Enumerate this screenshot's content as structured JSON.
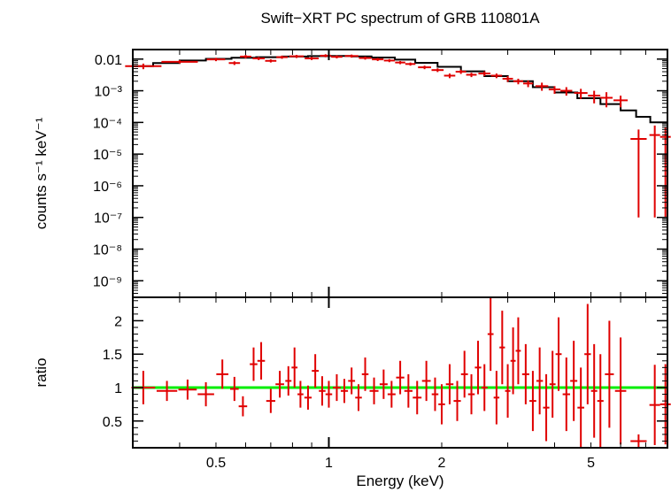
{
  "chart_data": [
    {
      "type": "scatter",
      "panel": "spectrum",
      "title": "Swift−XRT PC spectrum of GRB 110801A",
      "ylabel": "counts s⁻¹ keV⁻¹",
      "xlabel": "",
      "xscale": "log",
      "yscale": "log",
      "xlim": [
        0.3,
        8.0
      ],
      "ylim": [
        3e-10,
        0.02
      ],
      "ytick_labels": [
        {
          "value": 0.01,
          "label": "0.01"
        },
        {
          "value": 0.001,
          "label": "10⁻³"
        },
        {
          "value": 0.0001,
          "label": "10⁻⁴"
        },
        {
          "value": 1e-05,
          "label": "10⁻⁵"
        },
        {
          "value": 1e-06,
          "label": "10⁻⁶"
        },
        {
          "value": 1e-07,
          "label": "10⁻⁷"
        },
        {
          "value": 1e-08,
          "label": "10⁻⁸"
        },
        {
          "value": 1e-09,
          "label": "10⁻⁹"
        }
      ],
      "series": [
        {
          "kind": "data",
          "color": "#e00000",
          "points": [
            [
              0.32,
              0.006,
              0.0012
            ],
            [
              0.4,
              0.0082,
              0.001
            ],
            [
              0.5,
              0.0098,
              0.0012
            ],
            [
              0.56,
              0.0075,
              0.001
            ],
            [
              0.6,
              0.012,
              0.0015
            ],
            [
              0.65,
              0.0105,
              0.0012
            ],
            [
              0.7,
              0.0088,
              0.001
            ],
            [
              0.75,
              0.0115,
              0.0013
            ],
            [
              0.82,
              0.0122,
              0.0014
            ],
            [
              0.9,
              0.0105,
              0.0012
            ],
            [
              0.98,
              0.0128,
              0.0014
            ],
            [
              1.05,
              0.0118,
              0.0013
            ],
            [
              1.15,
              0.0125,
              0.0014
            ],
            [
              1.25,
              0.0108,
              0.0012
            ],
            [
              1.35,
              0.0098,
              0.0011
            ],
            [
              1.45,
              0.009,
              0.001
            ],
            [
              1.55,
              0.0078,
              0.0009
            ],
            [
              1.65,
              0.007,
              0.0008
            ],
            [
              1.8,
              0.0055,
              0.0007
            ],
            [
              1.95,
              0.0045,
              0.0006
            ],
            [
              2.1,
              0.003,
              0.0005
            ],
            [
              2.25,
              0.004,
              0.0006
            ],
            [
              2.4,
              0.0032,
              0.0005
            ],
            [
              2.6,
              0.0035,
              0.0006
            ],
            [
              2.8,
              0.003,
              0.0005
            ],
            [
              3.0,
              0.0024,
              0.0005
            ],
            [
              3.2,
              0.002,
              0.0004
            ],
            [
              3.4,
              0.0017,
              0.0004
            ],
            [
              3.7,
              0.0014,
              0.0004
            ],
            [
              4.0,
              0.0011,
              0.0003
            ],
            [
              4.3,
              0.001,
              0.0003
            ],
            [
              4.7,
              0.00085,
              0.0003
            ],
            [
              5.1,
              0.0007,
              0.0003
            ],
            [
              5.5,
              0.0006,
              0.0003
            ],
            [
              6.0,
              0.0005,
              0.0002
            ],
            [
              6.7,
              3e-05,
              2.99e-05
            ],
            [
              7.4,
              4e-05,
              3.99e-05
            ],
            [
              7.9,
              3.5e-05,
              3.49e-05
            ]
          ]
        },
        {
          "kind": "model",
          "color": "#000000",
          "step_x": [
            0.3,
            0.34,
            0.4,
            0.47,
            0.55,
            0.64,
            0.75,
            0.88,
            1.0,
            1.15,
            1.3,
            1.5,
            1.7,
            1.95,
            2.25,
            2.6,
            3.0,
            3.5,
            4.0,
            4.6,
            5.3,
            6.0,
            6.6,
            7.2,
            8.0
          ],
          "step_y": [
            0.006,
            0.0075,
            0.009,
            0.0102,
            0.011,
            0.0115,
            0.012,
            0.0124,
            0.0125,
            0.0122,
            0.0112,
            0.0096,
            0.0076,
            0.0057,
            0.0041,
            0.0029,
            0.002,
            0.0013,
            0.00088,
            0.00058,
            0.00038,
            0.00024,
            0.00015,
            0.0001
          ]
        }
      ]
    },
    {
      "type": "scatter",
      "panel": "ratio",
      "title": "",
      "xlabel": "Energy (keV)",
      "ylabel": "ratio",
      "xscale": "log",
      "yscale": "linear",
      "xlim": [
        0.3,
        8.0
      ],
      "ylim": [
        0.1,
        2.35
      ],
      "xtick_labels": [
        {
          "value": 0.5,
          "label": "0.5"
        },
        {
          "value": 1,
          "label": "1"
        },
        {
          "value": 2,
          "label": "2"
        },
        {
          "value": 5,
          "label": "5"
        }
      ],
      "ytick_labels": [
        {
          "value": 0.5,
          "label": "0.5"
        },
        {
          "value": 1,
          "label": "1"
        },
        {
          "value": 1.5,
          "label": "1.5"
        },
        {
          "value": 2,
          "label": "2"
        }
      ],
      "reference_line": {
        "y": 1.0,
        "color": "#00ee00"
      },
      "series": [
        {
          "kind": "ratio",
          "color": "#e00000",
          "points": [
            [
              0.32,
              1.0,
              0.25
            ],
            [
              0.37,
              0.95,
              0.15
            ],
            [
              0.42,
              0.97,
              0.15
            ],
            [
              0.47,
              0.9,
              0.18
            ],
            [
              0.52,
              1.2,
              0.22
            ],
            [
              0.56,
              0.98,
              0.18
            ],
            [
              0.59,
              0.72,
              0.15
            ],
            [
              0.63,
              1.35,
              0.25
            ],
            [
              0.66,
              1.4,
              0.28
            ],
            [
              0.7,
              0.8,
              0.18
            ],
            [
              0.74,
              1.05,
              0.2
            ],
            [
              0.78,
              1.1,
              0.22
            ],
            [
              0.81,
              1.3,
              0.3
            ],
            [
              0.84,
              0.9,
              0.2
            ],
            [
              0.88,
              0.85,
              0.18
            ],
            [
              0.92,
              1.25,
              0.25
            ],
            [
              0.96,
              0.95,
              0.22
            ],
            [
              1.0,
              0.9,
              0.2
            ],
            [
              1.05,
              1.0,
              0.2
            ],
            [
              1.1,
              0.95,
              0.18
            ],
            [
              1.15,
              1.1,
              0.2
            ],
            [
              1.2,
              0.85,
              0.2
            ],
            [
              1.25,
              1.2,
              0.25
            ],
            [
              1.32,
              0.95,
              0.2
            ],
            [
              1.4,
              1.05,
              0.22
            ],
            [
              1.47,
              0.9,
              0.2
            ],
            [
              1.55,
              1.15,
              0.25
            ],
            [
              1.63,
              0.95,
              0.25
            ],
            [
              1.72,
              0.85,
              0.25
            ],
            [
              1.82,
              1.1,
              0.3
            ],
            [
              1.92,
              0.9,
              0.25
            ],
            [
              2.0,
              0.75,
              0.3
            ],
            [
              2.1,
              1.05,
              0.3
            ],
            [
              2.2,
              0.8,
              0.3
            ],
            [
              2.3,
              1.2,
              0.35
            ],
            [
              2.4,
              0.9,
              0.3
            ],
            [
              2.5,
              1.3,
              0.4
            ],
            [
              2.6,
              1.0,
              0.35
            ],
            [
              2.7,
              1.8,
              0.55
            ],
            [
              2.8,
              0.85,
              0.4
            ],
            [
              2.9,
              1.6,
              0.55
            ],
            [
              3.0,
              0.95,
              0.4
            ],
            [
              3.1,
              1.4,
              0.5
            ],
            [
              3.2,
              1.55,
              0.5
            ],
            [
              3.35,
              1.2,
              0.45
            ],
            [
              3.5,
              0.8,
              0.45
            ],
            [
              3.65,
              1.1,
              0.5
            ],
            [
              3.8,
              0.7,
              0.5
            ],
            [
              3.95,
              1.05,
              0.5
            ],
            [
              4.1,
              1.5,
              0.55
            ],
            [
              4.3,
              0.9,
              0.55
            ],
            [
              4.5,
              1.1,
              0.6
            ],
            [
              4.7,
              0.7,
              0.6
            ],
            [
              4.9,
              1.5,
              0.75
            ],
            [
              5.1,
              0.95,
              0.7
            ],
            [
              5.3,
              0.8,
              0.7
            ],
            [
              5.6,
              1.2,
              0.8
            ],
            [
              6.0,
              0.95,
              0.8
            ],
            [
              6.7,
              0.2,
              0.1
            ],
            [
              7.4,
              0.74,
              0.6
            ],
            [
              7.9,
              0.75,
              0.6
            ]
          ]
        }
      ]
    }
  ]
}
